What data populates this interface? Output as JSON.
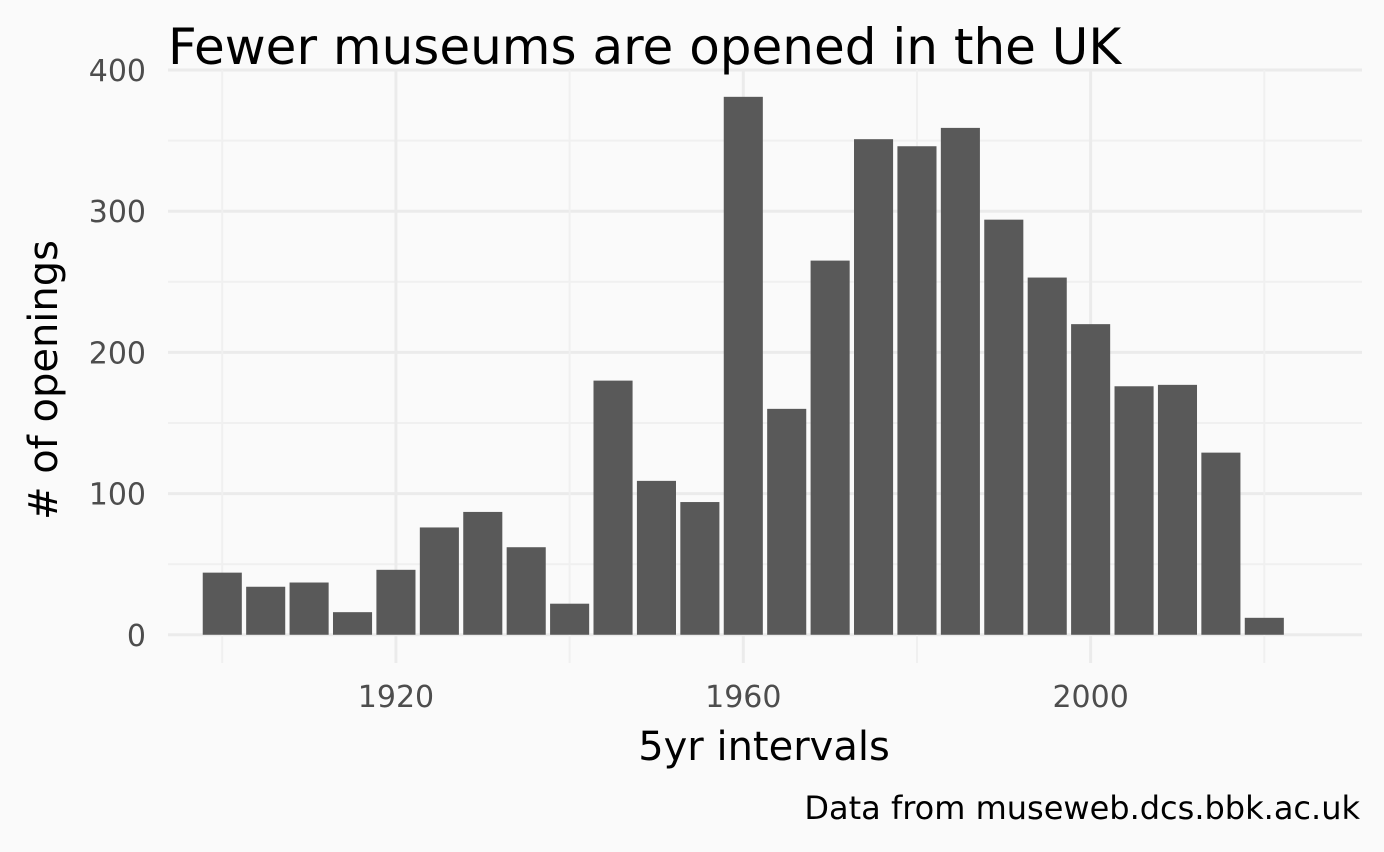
{
  "chart_data": {
    "type": "bar",
    "title": "Fewer museums are opened in the UK",
    "xlabel": "5yr intervals",
    "ylabel": "# of openings",
    "caption": "Data from museweb.dcs.bbk.ac.uk",
    "bar_color": "#595959",
    "background_color": "#fafafa",
    "grid": true,
    "xlim": [
      1893.75,
      2031.25
    ],
    "ylim": [
      -20,
      400
    ],
    "x_ticks": [
      1920,
      1960,
      2000
    ],
    "x_tick_labels": [
      "1920",
      "1960",
      "2000"
    ],
    "y_ticks": [
      0,
      100,
      200,
      300,
      400
    ],
    "y_tick_labels": [
      "0",
      "100",
      "200",
      "300",
      "400"
    ],
    "bin_width": 5,
    "x": [
      1900,
      1905,
      1910,
      1915,
      1920,
      1925,
      1930,
      1935,
      1940,
      1945,
      1950,
      1955,
      1960,
      1965,
      1970,
      1975,
      1980,
      1985,
      1990,
      1995,
      2000,
      2005,
      2010,
      2015,
      2020
    ],
    "values": [
      44,
      34,
      37,
      16,
      46,
      76,
      87,
      62,
      22,
      180,
      109,
      94,
      381,
      160,
      265,
      351,
      346,
      359,
      294,
      253,
      220,
      176,
      177,
      129,
      12
    ]
  }
}
